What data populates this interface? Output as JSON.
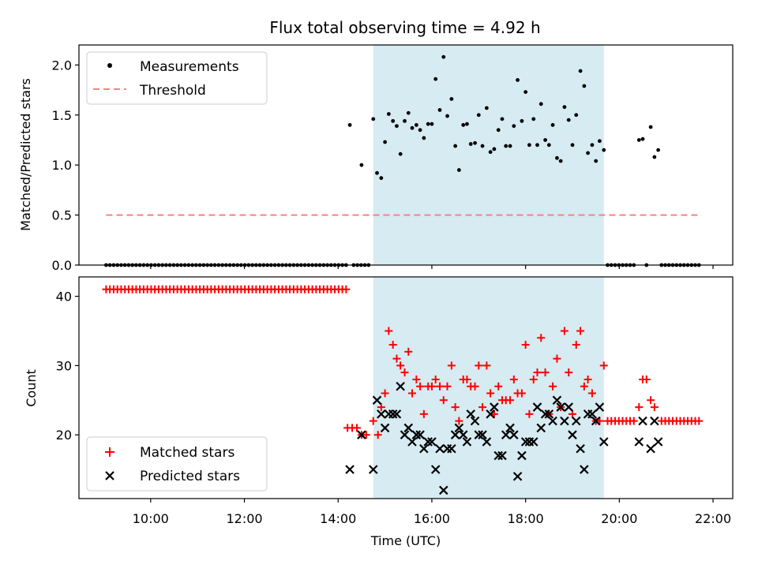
{
  "title": "Flux total observing time = 4.92 h",
  "colors": {
    "measurement": "#000000",
    "threshold": "#ff7f7f",
    "matched": "#ff0000",
    "predicted": "#000000",
    "band": "#add8e6"
  },
  "chart_data": [
    {
      "type": "scatter",
      "panel": "top",
      "ylabel": "Matched/Predicted stars",
      "xlabel": "",
      "xlim": [
        8.47,
        22.42
      ],
      "ylim": [
        0,
        2.2
      ],
      "yticks": [
        0.0,
        0.5,
        1.0,
        1.5,
        2.0
      ],
      "ytick_labels": [
        "0.0",
        "0.5",
        "1.0",
        "1.5",
        "2.0"
      ],
      "shaded_span": [
        14.75,
        19.67
      ],
      "legend_position": "upper-left",
      "legend": {
        "measurements": "Measurements",
        "threshold": "Threshold"
      },
      "threshold": {
        "y": 0.5,
        "x": [
          9.05,
          21.75
        ]
      },
      "zero_ranges": [
        [
          9.05,
          14.17,
          0.08
        ],
        [
          14.33,
          14.7,
          0.08
        ],
        [
          19.75,
          20.35,
          0.08
        ],
        [
          20.9,
          21.75,
          0.08
        ]
      ],
      "zero_points": [
        20.58
      ],
      "measurements": [
        [
          14.25,
          1.4
        ],
        [
          14.5,
          1.0
        ],
        [
          14.75,
          1.46
        ],
        [
          14.83,
          0.92
        ],
        [
          14.92,
          0.87
        ],
        [
          15.0,
          1.23
        ],
        [
          15.08,
          1.51
        ],
        [
          15.17,
          1.44
        ],
        [
          15.25,
          1.39
        ],
        [
          15.33,
          1.11
        ],
        [
          15.42,
          1.44
        ],
        [
          15.5,
          1.52
        ],
        [
          15.58,
          1.37
        ],
        [
          15.67,
          1.4
        ],
        [
          15.75,
          1.35
        ],
        [
          15.83,
          1.27
        ],
        [
          15.92,
          1.41
        ],
        [
          16.0,
          1.41
        ],
        [
          16.08,
          1.86
        ],
        [
          16.17,
          1.55
        ],
        [
          16.25,
          2.08
        ],
        [
          16.33,
          1.49
        ],
        [
          16.42,
          1.66
        ],
        [
          16.5,
          1.19
        ],
        [
          16.58,
          0.95
        ],
        [
          16.67,
          1.4
        ],
        [
          16.75,
          1.41
        ],
        [
          16.83,
          1.21
        ],
        [
          16.92,
          1.22
        ],
        [
          17.0,
          1.5
        ],
        [
          17.08,
          1.19
        ],
        [
          17.17,
          1.57
        ],
        [
          17.25,
          1.13
        ],
        [
          17.33,
          1.16
        ],
        [
          17.42,
          1.35
        ],
        [
          17.5,
          1.46
        ],
        [
          17.58,
          1.19
        ],
        [
          17.67,
          1.19
        ],
        [
          17.75,
          1.39
        ],
        [
          17.83,
          1.85
        ],
        [
          17.92,
          1.44
        ],
        [
          18.0,
          1.73
        ],
        [
          18.08,
          1.2
        ],
        [
          18.17,
          1.46
        ],
        [
          18.25,
          1.2
        ],
        [
          18.33,
          1.61
        ],
        [
          18.42,
          1.25
        ],
        [
          18.5,
          1.2
        ],
        [
          18.58,
          1.4
        ],
        [
          18.67,
          1.07
        ],
        [
          18.75,
          1.04
        ],
        [
          18.83,
          1.58
        ],
        [
          18.92,
          1.45
        ],
        [
          19.0,
          1.2
        ],
        [
          19.08,
          1.5
        ],
        [
          19.17,
          1.94
        ],
        [
          19.25,
          1.79
        ],
        [
          19.33,
          1.12
        ],
        [
          19.42,
          1.2
        ],
        [
          19.5,
          1.04
        ],
        [
          19.58,
          1.24
        ],
        [
          19.67,
          1.15
        ],
        [
          20.42,
          1.25
        ],
        [
          20.5,
          1.26
        ],
        [
          20.67,
          1.38
        ],
        [
          20.75,
          1.08
        ],
        [
          20.83,
          1.15
        ]
      ]
    },
    {
      "type": "scatter",
      "panel": "bottom",
      "xlabel": "Time (UTC)",
      "ylabel": "Count",
      "xlim": [
        8.47,
        22.42
      ],
      "ylim": [
        10.8,
        42.8
      ],
      "yticks": [
        20,
        30,
        40
      ],
      "ytick_labels": [
        "20",
        "30",
        "40"
      ],
      "xticks": [
        10,
        12,
        14,
        16,
        18,
        20,
        22
      ],
      "xtick_labels": [
        "10:00",
        "12:00",
        "14:00",
        "16:00",
        "18:00",
        "20:00",
        "22:00"
      ],
      "shaded_span": [
        14.75,
        19.67
      ],
      "legend_position": "lower-left",
      "legend": {
        "matched": "Matched stars",
        "predicted": "Predicted stars"
      },
      "matched_constant_ranges": [
        [
          9.05,
          14.17,
          0.08,
          41
        ],
        [
          19.75,
          20.35,
          0.08,
          22
        ],
        [
          20.9,
          21.75,
          0.08,
          22
        ]
      ],
      "matched_stars": [
        [
          14.2,
          21
        ],
        [
          14.3,
          21
        ],
        [
          14.4,
          21
        ],
        [
          14.5,
          20
        ],
        [
          14.6,
          20
        ],
        [
          14.75,
          22
        ],
        [
          14.85,
          20
        ],
        [
          14.92,
          24
        ],
        [
          15.0,
          26
        ],
        [
          15.08,
          35
        ],
        [
          15.17,
          33
        ],
        [
          15.25,
          31
        ],
        [
          15.33,
          30
        ],
        [
          15.42,
          29
        ],
        [
          15.5,
          32
        ],
        [
          15.58,
          26
        ],
        [
          15.67,
          28
        ],
        [
          15.75,
          27
        ],
        [
          15.83,
          23
        ],
        [
          15.92,
          27
        ],
        [
          16.0,
          27
        ],
        [
          16.08,
          28
        ],
        [
          16.17,
          27
        ],
        [
          16.25,
          25
        ],
        [
          16.33,
          27
        ],
        [
          16.42,
          30
        ],
        [
          16.5,
          24
        ],
        [
          16.58,
          22
        ],
        [
          16.67,
          28
        ],
        [
          16.75,
          28
        ],
        [
          16.83,
          27
        ],
        [
          16.92,
          27
        ],
        [
          17.0,
          30
        ],
        [
          17.08,
          24
        ],
        [
          17.17,
          30
        ],
        [
          17.25,
          26
        ],
        [
          17.33,
          23
        ],
        [
          17.42,
          27
        ],
        [
          17.5,
          25
        ],
        [
          17.58,
          25
        ],
        [
          17.67,
          25
        ],
        [
          17.75,
          28
        ],
        [
          17.83,
          26
        ],
        [
          17.92,
          26
        ],
        [
          18.0,
          33
        ],
        [
          18.08,
          23
        ],
        [
          18.17,
          28
        ],
        [
          18.25,
          29
        ],
        [
          18.33,
          34
        ],
        [
          18.42,
          29
        ],
        [
          18.5,
          23
        ],
        [
          18.58,
          27
        ],
        [
          18.67,
          31
        ],
        [
          18.75,
          24
        ],
        [
          18.83,
          35
        ],
        [
          18.92,
          29
        ],
        [
          19.0,
          23
        ],
        [
          19.08,
          33
        ],
        [
          19.17,
          35
        ],
        [
          19.25,
          27
        ],
        [
          19.33,
          28
        ],
        [
          19.42,
          26
        ],
        [
          19.5,
          22
        ],
        [
          19.58,
          22
        ],
        [
          19.67,
          30
        ],
        [
          20.42,
          24
        ],
        [
          20.5,
          28
        ],
        [
          20.58,
          28
        ],
        [
          20.67,
          25
        ],
        [
          20.75,
          24
        ]
      ],
      "predicted_stars": [
        [
          14.25,
          15
        ],
        [
          14.5,
          20
        ],
        [
          14.75,
          15
        ],
        [
          14.83,
          25
        ],
        [
          14.92,
          23
        ],
        [
          15.0,
          21
        ],
        [
          15.08,
          23
        ],
        [
          15.17,
          23
        ],
        [
          15.25,
          23
        ],
        [
          15.33,
          27
        ],
        [
          15.42,
          20
        ],
        [
          15.5,
          21
        ],
        [
          15.58,
          19
        ],
        [
          15.67,
          20
        ],
        [
          15.75,
          20
        ],
        [
          15.83,
          18
        ],
        [
          15.92,
          19
        ],
        [
          16.0,
          19
        ],
        [
          16.08,
          15
        ],
        [
          16.17,
          18
        ],
        [
          16.25,
          12
        ],
        [
          16.33,
          18
        ],
        [
          16.42,
          18
        ],
        [
          16.5,
          20
        ],
        [
          16.58,
          21
        ],
        [
          16.67,
          20
        ],
        [
          16.75,
          19
        ],
        [
          16.83,
          23
        ],
        [
          16.92,
          22
        ],
        [
          17.0,
          20
        ],
        [
          17.08,
          20
        ],
        [
          17.17,
          19
        ],
        [
          17.25,
          23
        ],
        [
          17.33,
          24
        ],
        [
          17.42,
          17
        ],
        [
          17.5,
          17
        ],
        [
          17.58,
          20
        ],
        [
          17.67,
          21
        ],
        [
          17.75,
          20
        ],
        [
          17.83,
          14
        ],
        [
          17.92,
          17
        ],
        [
          18.0,
          19
        ],
        [
          18.08,
          19
        ],
        [
          18.17,
          19
        ],
        [
          18.25,
          24
        ],
        [
          18.33,
          21
        ],
        [
          18.42,
          23
        ],
        [
          18.5,
          23
        ],
        [
          18.58,
          22
        ],
        [
          18.67,
          25
        ],
        [
          18.75,
          24
        ],
        [
          18.83,
          22
        ],
        [
          18.92,
          24
        ],
        [
          19.0,
          20
        ],
        [
          19.08,
          22
        ],
        [
          19.17,
          18
        ],
        [
          19.25,
          15
        ],
        [
          19.33,
          23
        ],
        [
          19.42,
          23
        ],
        [
          19.5,
          22
        ],
        [
          19.58,
          24
        ],
        [
          19.67,
          19
        ],
        [
          20.42,
          19
        ],
        [
          20.5,
          22
        ],
        [
          20.67,
          18
        ],
        [
          20.75,
          22
        ],
        [
          20.83,
          19
        ]
      ]
    }
  ]
}
